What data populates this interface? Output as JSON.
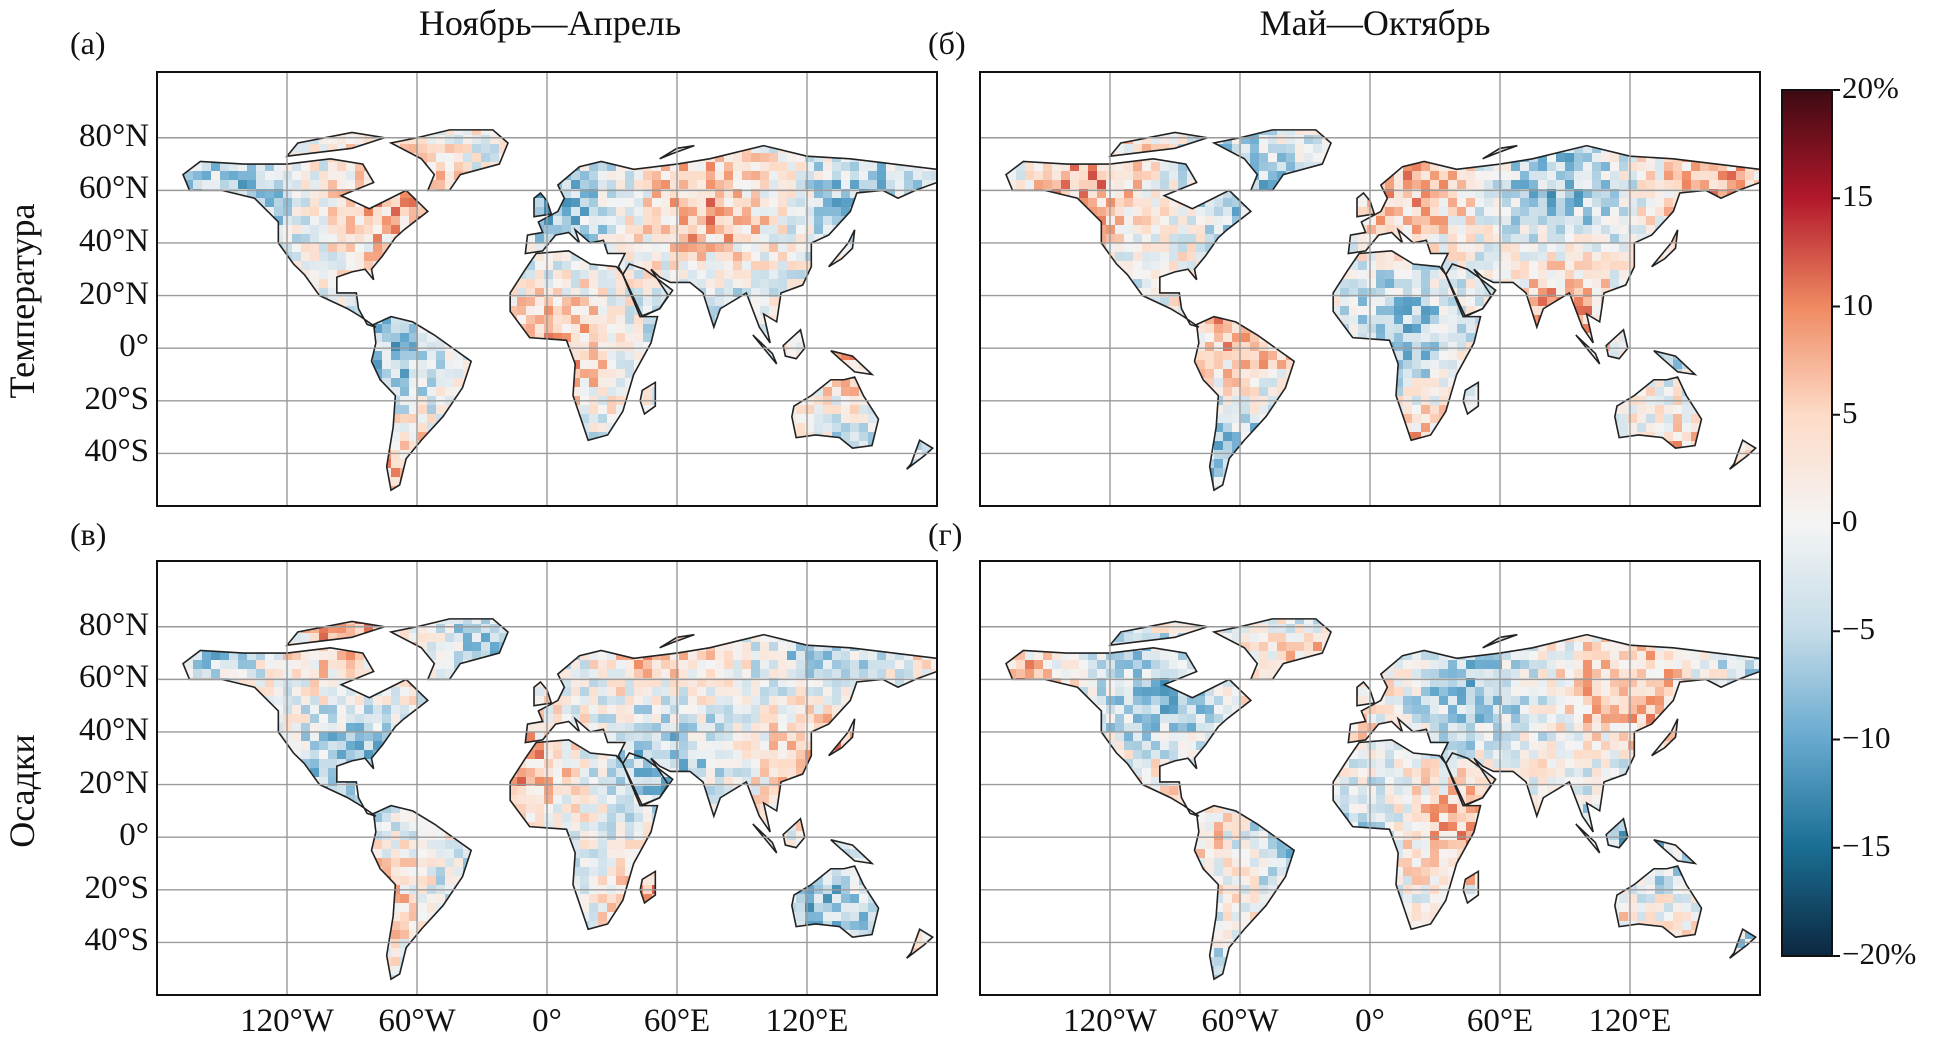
{
  "column_titles": [
    "Ноябрь—Апрель",
    "Май—Октябрь"
  ],
  "row_titles": [
    "Температура",
    "Осадки"
  ],
  "panel_labels": [
    "(а)",
    "(б)",
    "(в)",
    "(г)"
  ],
  "lat_labels": [
    "80°N",
    "60°N",
    "40°N",
    "20°N",
    "0°",
    "20°S",
    "40°S"
  ],
  "lon_labels": [
    "120°W",
    "60°W",
    "0°",
    "60°E",
    "120°E"
  ],
  "colorbar": {
    "labels": [
      "20%",
      "15",
      "10",
      "5",
      "0",
      "−5",
      "−10",
      "−15",
      "−20%"
    ],
    "values": [
      20,
      15,
      10,
      5,
      0,
      -5,
      -10,
      -15,
      -20
    ],
    "colors": [
      "#3d0a12",
      "#b2182b",
      "#ef8a62",
      "#fddbc7",
      "#f4f4f4",
      "#c5dce8",
      "#67a9cf",
      "#1a6e93",
      "#0c2740"
    ]
  },
  "chart_data": [
    {
      "type": "heatmap",
      "panel": "(а)",
      "column": "Ноябрь—Апрель",
      "row": "Температура",
      "lat_ticks": [
        80,
        60,
        40,
        20,
        0,
        -20,
        -40
      ],
      "lon_ticks": [
        -120,
        -60,
        0,
        60,
        120
      ],
      "color_range": [
        -20,
        20
      ],
      "unit": "%"
    },
    {
      "type": "heatmap",
      "panel": "(б)",
      "column": "Май—Октябрь",
      "row": "Температура",
      "lat_ticks": [
        80,
        60,
        40,
        20,
        0,
        -20,
        -40
      ],
      "lon_ticks": [
        -120,
        -60,
        0,
        60,
        120
      ],
      "color_range": [
        -20,
        20
      ],
      "unit": "%"
    },
    {
      "type": "heatmap",
      "panel": "(в)",
      "column": "Ноябрь—Апрель",
      "row": "Осадки",
      "lat_ticks": [
        80,
        60,
        40,
        20,
        0,
        -20,
        -40
      ],
      "lon_ticks": [
        -120,
        -60,
        0,
        60,
        120
      ],
      "color_range": [
        -20,
        20
      ],
      "unit": "%"
    },
    {
      "type": "heatmap",
      "panel": "(г)",
      "column": "Май—Октябрь",
      "row": "Осадки",
      "lat_ticks": [
        80,
        60,
        40,
        20,
        0,
        -20,
        -40
      ],
      "lon_ticks": [
        -120,
        -60,
        0,
        60,
        120
      ],
      "color_range": [
        -20,
        20
      ],
      "unit": "%"
    }
  ]
}
